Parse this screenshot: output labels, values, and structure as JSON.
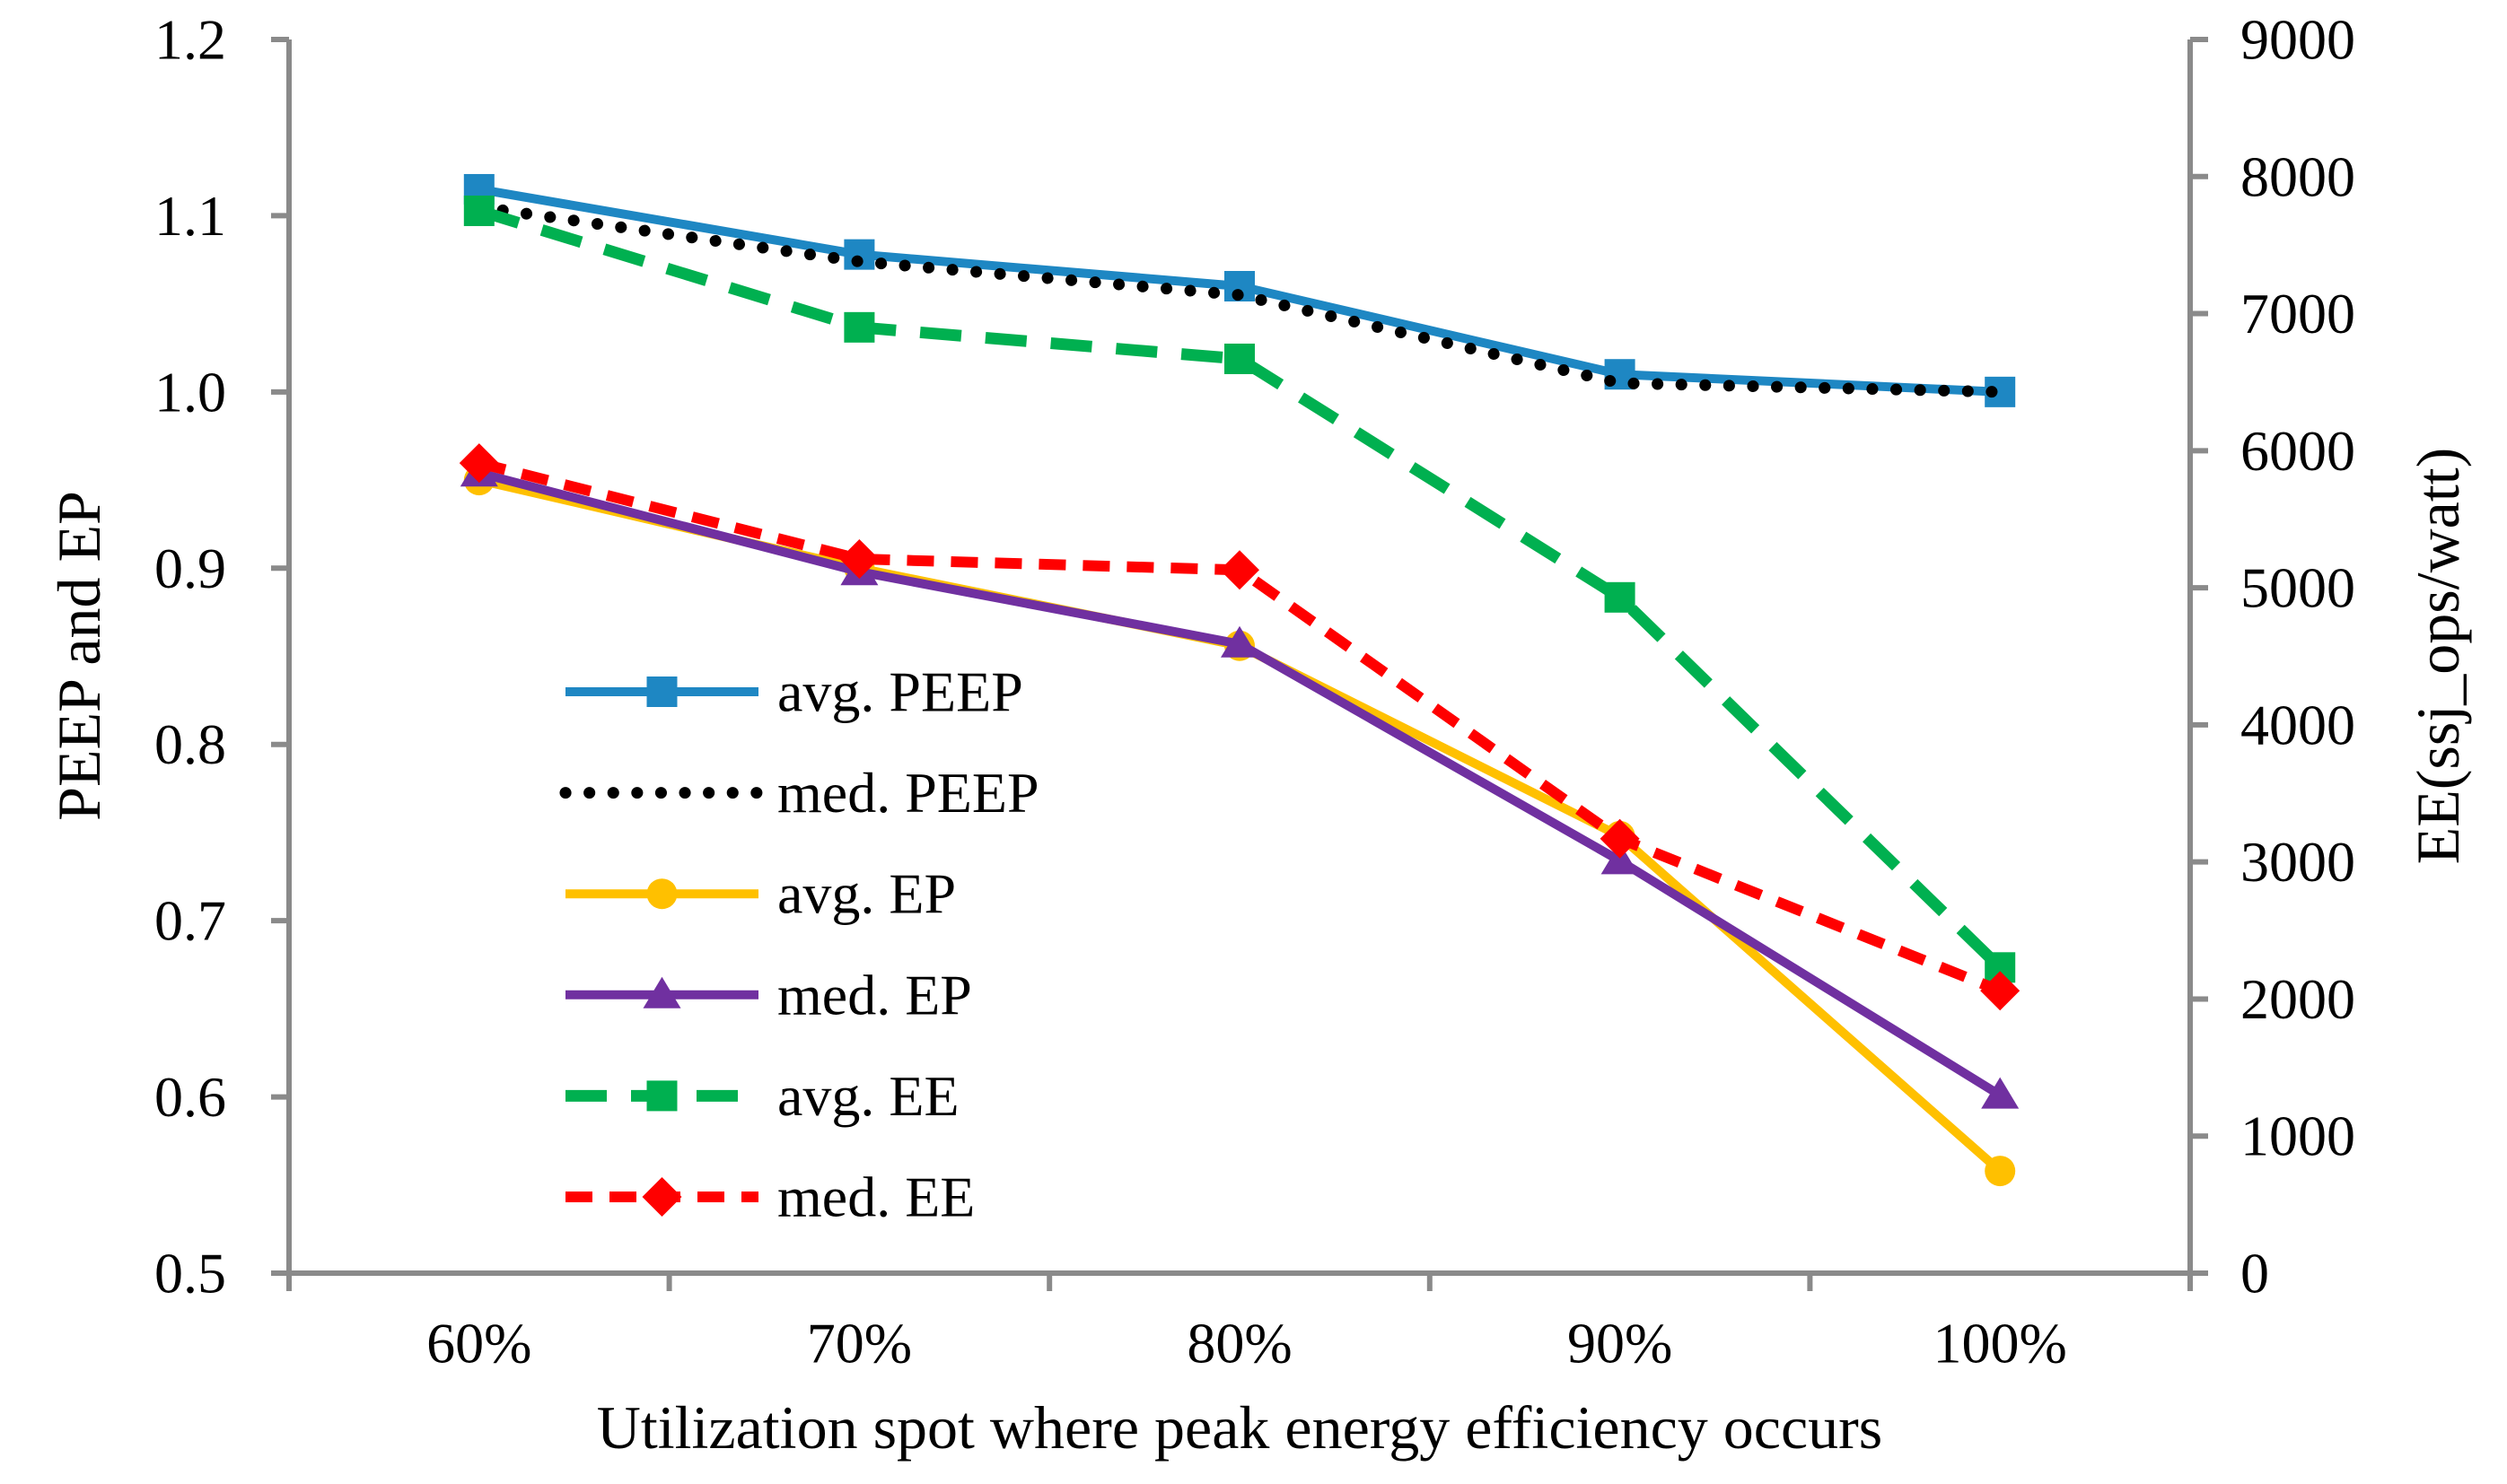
{
  "figure": {
    "background": "#FFFFFF",
    "axis_color": "#8A8A8A"
  },
  "chart_data": {
    "type": "line",
    "title": "",
    "xlabel": "Utilization spot where peak energy efficiency occurs",
    "x_categories": [
      "60%",
      "70%",
      "80%",
      "90%",
      "100%"
    ],
    "left_axis": {
      "label": "PEEP and EP",
      "min": 0.5,
      "max": 1.2,
      "tick_step": 0.1,
      "ticks": [
        "1.2",
        "1.1",
        "1.0",
        "0.9",
        "0.8",
        "0.7",
        "0.6",
        "0.5"
      ]
    },
    "right_axis": {
      "label": "EE(ssj_ops/watt)",
      "min": 0,
      "max": 9000,
      "tick_step": 1000,
      "ticks": [
        "9000",
        "8000",
        "7000",
        "6000",
        "5000",
        "4000",
        "3000",
        "2000",
        "1000",
        "0"
      ]
    },
    "grid": false,
    "legend_position": "inside-center-left",
    "series": [
      {
        "name": "avg. PEEP",
        "axis": "left",
        "color": "#1E87C3",
        "line": "solid",
        "marker": "square",
        "values": [
          1.115,
          1.078,
          1.06,
          1.01,
          1.0
        ]
      },
      {
        "name": "med. PEEP",
        "axis": "left",
        "color": "#000000",
        "line": "dotted",
        "marker": "none",
        "values": [
          1.105,
          1.074,
          1.055,
          1.005,
          1.0
        ]
      },
      {
        "name": "avg. EP",
        "axis": "left",
        "color": "#FFC000",
        "line": "solid",
        "marker": "circle",
        "values": [
          0.95,
          0.9,
          0.856,
          0.748,
          0.558
        ]
      },
      {
        "name": "med. EP",
        "axis": "left",
        "color": "#7030A0",
        "line": "solid",
        "marker": "triangle",
        "values": [
          0.954,
          0.898,
          0.857,
          0.734,
          0.601
        ]
      },
      {
        "name": "avg. EE",
        "axis": "right",
        "color": "#00B050",
        "line": "dashed",
        "marker": "square",
        "values": [
          7750,
          6900,
          6670,
          4930,
          2230
        ]
      },
      {
        "name": "med. EE",
        "axis": "right",
        "color": "#FF0000",
        "line": "dashed-short",
        "marker": "diamond",
        "values": [
          5910,
          5210,
          5130,
          3170,
          2060
        ]
      }
    ]
  }
}
